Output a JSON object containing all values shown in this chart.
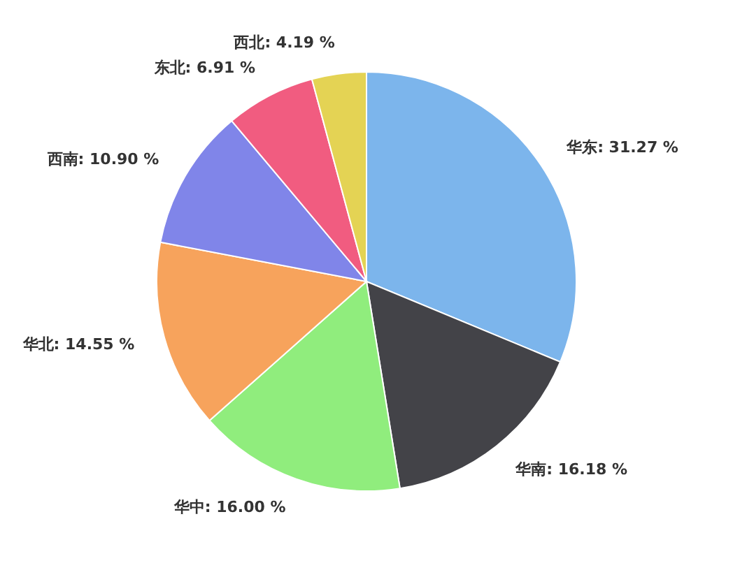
{
  "chart_data": {
    "type": "pie",
    "categories": [
      "华东",
      "华南",
      "华中",
      "华北",
      "西南",
      "东北",
      "西北"
    ],
    "values": [
      31.27,
      16.18,
      16.0,
      14.55,
      10.9,
      6.91,
      4.19
    ],
    "colors": [
      "#7cb5ec",
      "#434348",
      "#90ed7d",
      "#f7a35c",
      "#8085e9",
      "#f15c80",
      "#e4d354"
    ],
    "value_labels": [
      "31.27 %",
      "16.18 %",
      "16.00 %",
      "14.55 %",
      "10.90 %",
      "6.91 %",
      "4.19 %"
    ]
  }
}
